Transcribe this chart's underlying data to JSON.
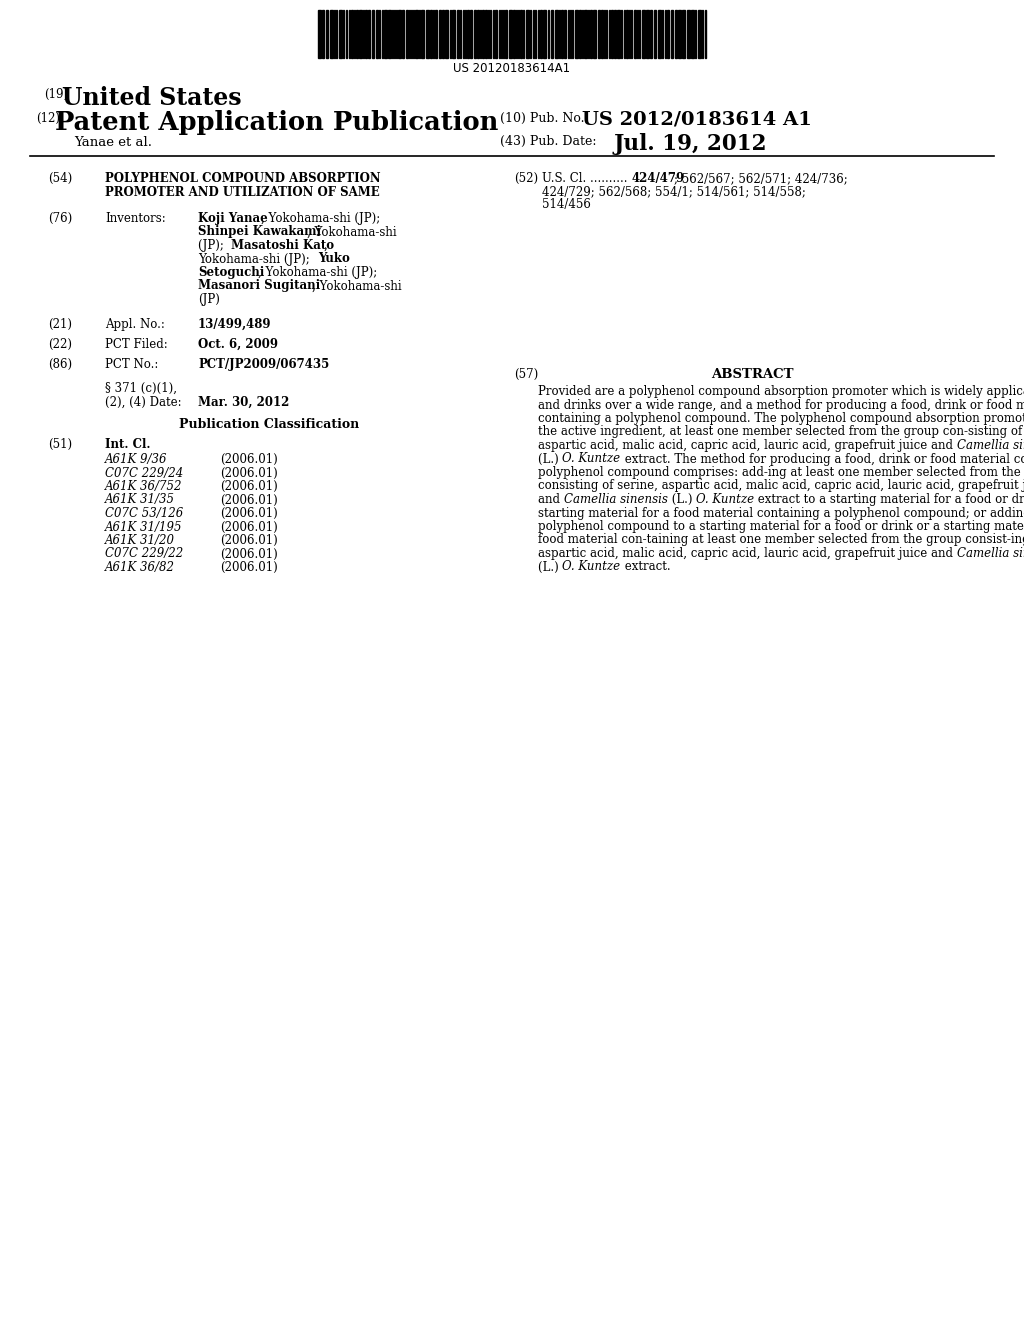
{
  "bg": "#ffffff",
  "barcode_number": "US 20120183614A1",
  "country_label": "(19)",
  "country": "United States",
  "type_label": "(12)",
  "type": "Patent Application Publication",
  "pub_no_label": "(10) Pub. No.:",
  "pub_no": "US 2012/0183614 A1",
  "date_label": "(43) Pub. Date:",
  "date": "Jul. 19, 2012",
  "applicant": "Yanae et al.",
  "title_label": "(54)",
  "title_line1": "POLYPHENOL COMPOUND ABSORPTION",
  "title_line2": "PROMOTER AND UTILIZATION OF SAME",
  "us_cl_label": "(52)",
  "us_cl_prefix": "U.S. Cl. ..........",
  "us_cl_bold": "424/479",
  "us_cl_rest1": "; 562/567; 562/571; 424/736;",
  "us_cl_line2": "424/729; 562/568; 554/1; 514/561; 514/558;",
  "us_cl_line3": "514/456",
  "inventors_label": "(76)",
  "inventors_title": "Inventors:",
  "appl_no_label": "(21)",
  "appl_no_title": "Appl. No.:",
  "appl_no": "13/499,489",
  "pct_filed_label": "(22)",
  "pct_filed_title": "PCT Filed:",
  "pct_filed": "Oct. 6, 2009",
  "pct_no_label": "(86)",
  "pct_no_title": "PCT No.:",
  "pct_no": "PCT/JP2009/067435",
  "sect371_line1": "§ 371 (c)(1),",
  "sect371_line2": "(2), (4) Date:",
  "sect371_date": "Mar. 30, 2012",
  "pub_class_title": "Publication Classification",
  "int_cl_label": "(51)",
  "int_cl_title": "Int. Cl.",
  "int_cl_entries": [
    [
      "A61K 9/36",
      "(2006.01)"
    ],
    [
      "C07C 229/24",
      "(2006.01)"
    ],
    [
      "A61K 36/752",
      "(2006.01)"
    ],
    [
      "A61K 31/35",
      "(2006.01)"
    ],
    [
      "C07C 53/126",
      "(2006.01)"
    ],
    [
      "A61K 31/195",
      "(2006.01)"
    ],
    [
      "A61K 31/20",
      "(2006.01)"
    ],
    [
      "C07C 229/22",
      "(2006.01)"
    ],
    [
      "A61K 36/82",
      "(2006.01)"
    ]
  ],
  "abstract_label": "(57)",
  "abstract_title": "ABSTRACT",
  "abstract_text": "Provided are a polyphenol compound absorption promoter which is widely applicable to foods and drinks over a wide range, and a method for producing a food, drink or food material containing a polyphenol compound. The polyphenol compound absorption promoter comprises, as the active ingredient, at least one member selected from the group con-sisting of serine, aspartic acid, malic acid, capric acid, lauric acid, grapefruit juice and Camellia sinensis (L.) O. Kuntze extract. The method for producing a food, drink or food material containing a polyphenol compound comprises: add-ing at least one member selected from the group consisting of serine, aspartic acid, malic acid, capric acid, lauric acid, grapefruit juice and Camellia sinensis (L.) O. Kuntze extract to a starting material for a food or drink or a starting material for a food material containing a polyphenol compound; or adding a polyphenol compound to a starting material for a food or drink or a starting material for a food material con-taining at least one member selected from the group consist-ing of serine, aspartic acid, malic acid, capric acid, lauric acid, grapefruit juice and Camellia sinensis (L.) O. Kuntze extract."
}
